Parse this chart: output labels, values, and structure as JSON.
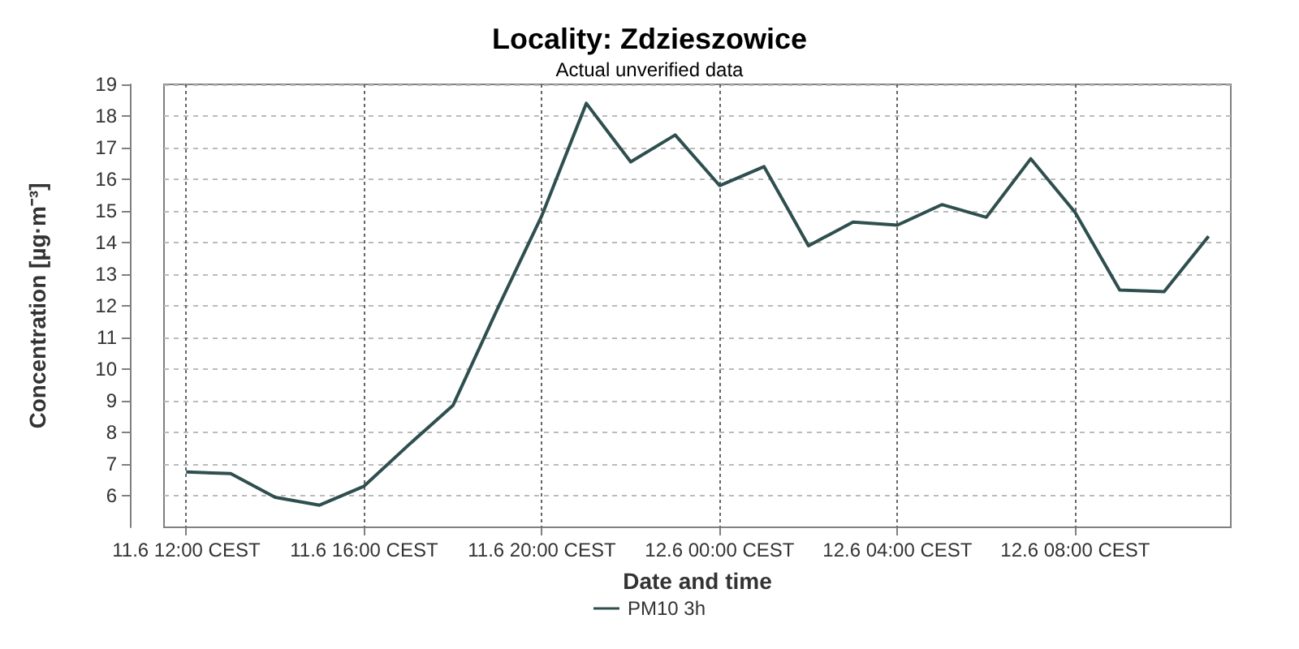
{
  "chart_data": {
    "type": "line",
    "title": "Locality: Zdzieszowice",
    "subtitle": "Actual unverified data",
    "xlabel": "Date and time",
    "ylabel": "Concentration [µg·m⁻³]",
    "x": [
      "--06-11T12:00",
      "--06-11T13:00",
      "--06-11T14:00",
      "--06-11T15:00",
      "--06-11T16:00",
      "--06-11T17:00",
      "--06-11T18:00",
      "--06-11T19:00",
      "--06-11T20:00",
      "--06-11T21:00",
      "--06-11T22:00",
      "--06-11T23:00",
      "--06-12T00:00",
      "--06-12T01:00",
      "--06-12T02:00",
      "--06-12T03:00",
      "--06-12T04:00",
      "--06-12T05:00",
      "--06-12T06:00",
      "--06-12T07:00",
      "--06-12T08:00",
      "--06-12T09:00",
      "--06-12T10:00",
      "--06-12T11:00"
    ],
    "series": [
      {
        "name": "PM10 3h",
        "color": "#2f4f4f",
        "values": [
          6.75,
          6.7,
          5.95,
          5.7,
          6.3,
          7.6,
          8.85,
          11.9,
          14.85,
          18.4,
          16.55,
          17.4,
          15.8,
          16.4,
          13.9,
          14.65,
          14.55,
          15.2,
          14.8,
          16.65,
          14.95,
          12.5,
          12.45,
          14.2
        ]
      }
    ],
    "xlim": [
      "--06-11T11:30",
      "--06-12T11:30"
    ],
    "xticks": [
      {
        "value": "--06-11T12:00",
        "label": "11.6 12:00 CEST"
      },
      {
        "value": "--06-11T16:00",
        "label": "11.6 16:00 CEST"
      },
      {
        "value": "--06-11T20:00",
        "label": "11.6 20:00 CEST"
      },
      {
        "value": "--06-12T00:00",
        "label": "12.6 00:00 CEST"
      },
      {
        "value": "--06-12T04:00",
        "label": "12.6 04:00 CEST"
      },
      {
        "value": "--06-12T08:00",
        "label": "12.6 08:00 CEST"
      }
    ],
    "ylim": [
      5,
      19
    ],
    "yticks": [
      6,
      7,
      8,
      9,
      10,
      11,
      12,
      13,
      14,
      15,
      16,
      17,
      18,
      19
    ],
    "grid": true,
    "legend": "bottom",
    "marker": "none",
    "line_style": "solid"
  }
}
